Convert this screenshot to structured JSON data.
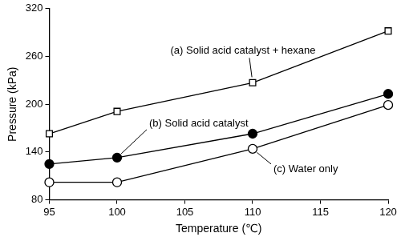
{
  "chart_data": {
    "type": "line",
    "x_label": "Temperature (℃)",
    "y_label": "Pressure (kPa)",
    "x": [
      95,
      100,
      110,
      120
    ],
    "series": [
      {
        "name": "(a) Solid acid catalyst + hexane",
        "color": "#000000",
        "marker": "square-open",
        "values": [
          163,
          191,
          227,
          292
        ]
      },
      {
        "name": "(b) Solid acid catalyst",
        "color": "#000000",
        "marker": "circle-filled",
        "values": [
          125,
          133,
          163,
          213
        ]
      },
      {
        "name": "(c) Water only",
        "color": "#000000",
        "marker": "circle-open",
        "values": [
          102,
          102,
          144,
          199
        ]
      }
    ],
    "xlim": [
      95,
      120
    ],
    "xticks": [
      95,
      100,
      105,
      110,
      115,
      120
    ],
    "ylim": [
      80,
      320
    ],
    "yticks": [
      80,
      140,
      200,
      260,
      320
    ],
    "grid": false
  }
}
